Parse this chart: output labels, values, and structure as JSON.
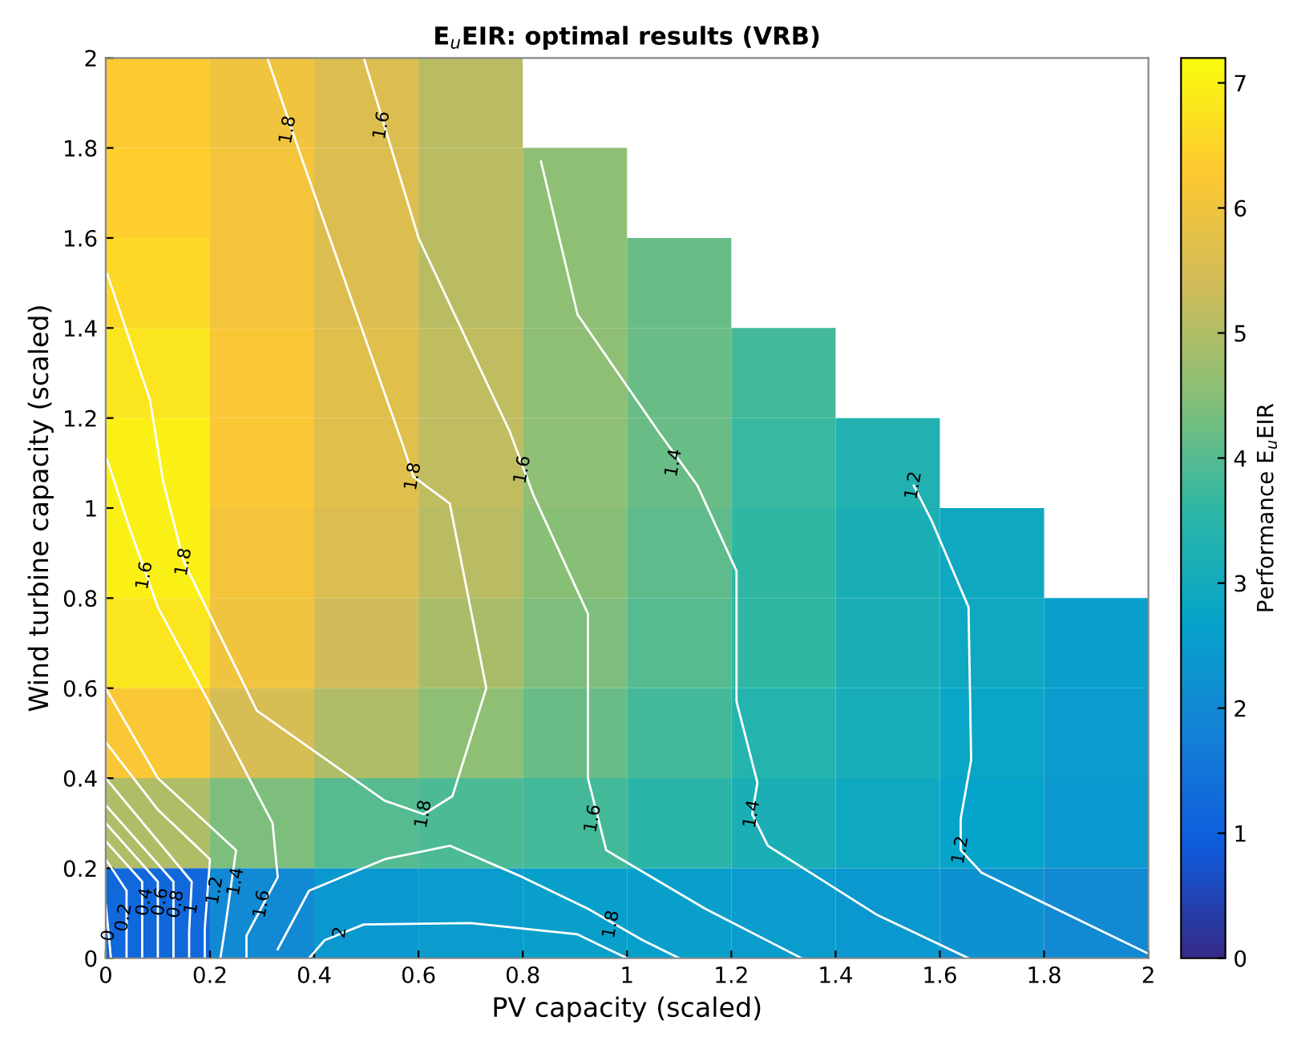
{
  "chart_data": {
    "type": "heatmap",
    "title": "E$_{u}$EIR: optimal results (VRB)",
    "xlabel": "PV capacity (scaled)",
    "ylabel": "Wind turbine capacity (scaled)",
    "clabel": "Performance E$_{u}$EIR",
    "cells": [
      [
        6.3,
        6.0,
        5.6,
        5.1,
        null,
        null,
        null,
        null,
        null,
        null
      ],
      [
        6.4,
        6.1,
        5.6,
        5.1,
        4.6,
        null,
        null,
        null,
        null,
        null
      ],
      [
        6.6,
        6.1,
        5.6,
        5.1,
        4.6,
        4.2,
        null,
        null,
        null,
        null
      ],
      [
        6.8,
        6.2,
        5.7,
        5.2,
        4.6,
        4.2,
        3.8,
        null,
        null,
        null
      ],
      [
        7.0,
        6.2,
        5.7,
        5.2,
        4.6,
        4.2,
        3.7,
        3.3,
        null,
        null
      ],
      [
        7.0,
        6.1,
        5.6,
        5.1,
        4.5,
        4.1,
        3.6,
        3.2,
        2.9,
        null
      ],
      [
        6.8,
        6.0,
        5.4,
        4.9,
        4.4,
        4.0,
        3.6,
        3.2,
        2.9,
        2.6
      ],
      [
        6.2,
        5.5,
        5.0,
        4.6,
        4.2,
        3.8,
        3.4,
        3.1,
        2.8,
        2.5
      ],
      [
        5.0,
        4.4,
        4.0,
        3.9,
        3.8,
        3.5,
        3.2,
        2.9,
        2.7,
        2.4
      ],
      [
        1.2,
        2.0,
        2.4,
        2.5,
        2.6,
        2.6,
        2.5,
        2.4,
        2.2,
        2.0
      ]
    ],
    "clim": [
      0,
      7.2
    ],
    "cticks": [
      0,
      1,
      2,
      3,
      4,
      5,
      6,
      7
    ],
    "xlim": [
      0,
      2
    ],
    "ylim": [
      0,
      2
    ],
    "xticks": [
      0,
      0.2,
      0.4,
      0.6,
      0.8,
      1,
      1.2,
      1.4,
      1.6,
      1.8,
      2
    ],
    "yticks": [
      0,
      0.2,
      0.4,
      0.6,
      0.8,
      1,
      1.2,
      1.4,
      1.6,
      1.8,
      2
    ],
    "series": [
      {
        "type": "line",
        "color": "#ffffff",
        "x": [
          0.31,
          0.375,
          0.57,
          0.59,
          0.66,
          0.73,
          0.665,
          0.61,
          0.535,
          0.29,
          0.15,
          0.11,
          0.085,
          0.003
        ],
        "values": [
          2.0,
          1.78,
          1.14,
          1.07,
          1.01,
          0.6,
          0.36,
          0.32,
          0.35,
          0.55,
          0.88,
          1.06,
          1.24,
          1.52
        ]
      },
      {
        "type": "line",
        "color": "#ffffff",
        "x": [
          0.495,
          0.6,
          0.775,
          0.82,
          0.925,
          0.925,
          0.96,
          1.15,
          1.335
        ],
        "values": [
          2.0,
          1.6,
          1.17,
          1.03,
          0.765,
          0.4,
          0.24,
          0.11,
          0.0
        ]
      },
      {
        "type": "line",
        "color": "#ffffff",
        "x": [
          0.003,
          0.043,
          0.1,
          0.23,
          0.32,
          0.33,
          0.27,
          0.27
        ],
        "values": [
          1.107,
          0.965,
          0.78,
          0.5,
          0.3,
          0.18,
          0.05,
          0.0
        ]
      },
      {
        "type": "line",
        "color": "#ffffff",
        "x": [
          0.835,
          0.905,
          1.06,
          1.135,
          1.21,
          1.21,
          1.25,
          1.24,
          1.27,
          1.48,
          1.655
        ],
        "values": [
          1.77,
          1.43,
          1.17,
          1.05,
          0.86,
          0.57,
          0.39,
          0.32,
          0.25,
          0.096,
          0.0
        ]
      },
      {
        "type": "line",
        "color": "#ffffff",
        "x": [
          1.55,
          1.585,
          1.655,
          1.66,
          1.64,
          1.64,
          1.68,
          2.0
        ],
        "values": [
          1.05,
          0.97,
          0.78,
          0.44,
          0.31,
          0.24,
          0.19,
          0.01
        ]
      },
      {
        "type": "line",
        "color": "#ffffff",
        "x": [
          0.33,
          0.39,
          0.535,
          0.66,
          0.8,
          0.925,
          1.03,
          1.1
        ],
        "values": [
          0.02,
          0.15,
          0.22,
          0.25,
          0.18,
          0.11,
          0.04,
          0.0
        ]
      },
      {
        "type": "line",
        "color": "#ffffff",
        "x": [
          0.39,
          0.42,
          0.495,
          0.7,
          0.905,
          1.0
        ],
        "values": [
          0.0,
          0.04,
          0.075,
          0.078,
          0.053,
          0.0
        ]
      },
      {
        "type": "line",
        "color": "#ffffff",
        "x": [
          0.0,
          0.1,
          0.25,
          0.23,
          0.22
        ],
        "values": [
          0.6,
          0.4,
          0.24,
          0.075,
          0.0
        ]
      },
      {
        "type": "line",
        "color": "#ffffff",
        "x": [
          0.0,
          0.1,
          0.2,
          0.19,
          0.19
        ],
        "values": [
          0.48,
          0.33,
          0.22,
          0.065,
          0.0
        ]
      },
      {
        "type": "line",
        "color": "#ffffff",
        "x": [
          0.0,
          0.165,
          0.16,
          0.16
        ],
        "values": [
          0.4,
          0.17,
          0.06,
          0.0
        ]
      },
      {
        "type": "line",
        "color": "#ffffff",
        "x": [
          0.0,
          0.13,
          0.13
        ],
        "values": [
          0.34,
          0.17,
          0.0
        ]
      },
      {
        "type": "line",
        "color": "#ffffff",
        "x": [
          0.0,
          0.1,
          0.1
        ],
        "values": [
          0.3,
          0.17,
          0.0
        ]
      },
      {
        "type": "line",
        "color": "#ffffff",
        "x": [
          0.0,
          0.07,
          0.07
        ],
        "values": [
          0.26,
          0.17,
          0.0
        ]
      },
      {
        "type": "line",
        "color": "#ffffff",
        "x": [
          0.0,
          0.04,
          0.04
        ],
        "values": [
          0.22,
          0.15,
          0.0
        ]
      },
      {
        "type": "line",
        "color": "#ffffff",
        "x": [
          0.0,
          0.006,
          0.01
        ],
        "values": [
          0.12,
          0.05,
          0.0
        ]
      }
    ],
    "annotations": [
      {
        "text": "1.8",
        "x": 0.35,
        "y": 1.84
      },
      {
        "text": "1.6",
        "x": 0.53,
        "y": 1.85
      },
      {
        "text": "1.8",
        "x": 0.59,
        "y": 1.07
      },
      {
        "text": "1.6",
        "x": 0.8,
        "y": 1.085
      },
      {
        "text": "1.4",
        "x": 1.09,
        "y": 1.1
      },
      {
        "text": "1.2",
        "x": 1.55,
        "y": 1.05
      },
      {
        "text": "1.6",
        "x": 0.075,
        "y": 0.85
      },
      {
        "text": "1.8",
        "x": 0.15,
        "y": 0.88
      },
      {
        "text": "1.8",
        "x": 0.61,
        "y": 0.32
      },
      {
        "text": "1.6",
        "x": 0.935,
        "y": 0.31
      },
      {
        "text": "1.4",
        "x": 1.24,
        "y": 0.32
      },
      {
        "text": "1.2",
        "x": 1.64,
        "y": 0.24
      },
      {
        "text": "1.8",
        "x": 0.97,
        "y": 0.075
      },
      {
        "text": "2",
        "x": 0.45,
        "y": 0.057
      },
      {
        "text": "1.6",
        "x": 0.3,
        "y": 0.12
      },
      {
        "text": "1.4",
        "x": 0.25,
        "y": 0.17
      },
      {
        "text": "1.2",
        "x": 0.21,
        "y": 0.15
      },
      {
        "text": "1",
        "x": 0.165,
        "y": 0.11
      },
      {
        "text": "0.8",
        "x": 0.135,
        "y": 0.12
      },
      {
        "text": "0.6",
        "x": 0.105,
        "y": 0.125
      },
      {
        "text": "0.4",
        "x": 0.075,
        "y": 0.125
      },
      {
        "text": "0.2",
        "x": 0.035,
        "y": 0.09
      },
      {
        "text": "0",
        "x": 0.006,
        "y": 0.05
      }
    ],
    "grid": false
  }
}
